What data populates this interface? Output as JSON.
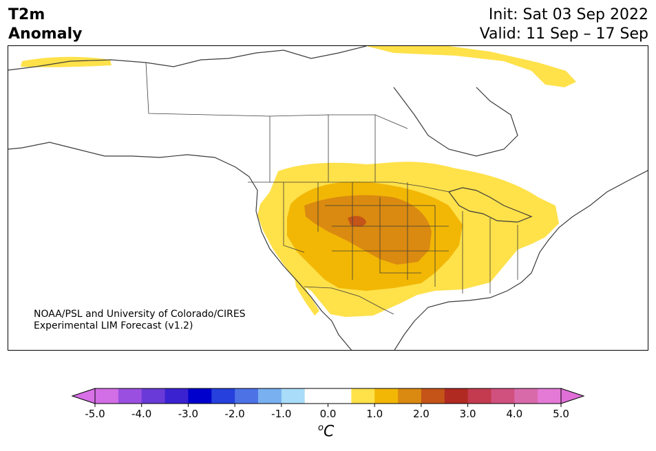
{
  "header": {
    "title_line1": "T2m",
    "title_line2": "Anomaly",
    "init": "Init: Sat 03 Sep 2022",
    "valid": "Valid: 11 Sep – 17 Sep"
  },
  "credit": {
    "line1": "NOAA/PSL and University of Colorado/CIRES",
    "line2": "Experimental LIM Forecast (v1.2)"
  },
  "colorbar": {
    "units_base": "C",
    "units_sup": "o",
    "tick_labels": [
      "-5.0",
      "-4.0",
      "-3.0",
      "-2.0",
      "-1.0",
      "0.0",
      "1.0",
      "2.0",
      "3.0",
      "4.0",
      "5.0"
    ],
    "bin_colors": [
      "#d26ee6",
      "#9b4fe0",
      "#6a3ad8",
      "#3a22d0",
      "#0000cc",
      "#2540dc",
      "#4d72e6",
      "#78b0f0",
      "#a8dcf8",
      "#ffffff",
      "#ffffff",
      "#ffe14a",
      "#f2b705",
      "#da8a10",
      "#c45418",
      "#b02a22",
      "#c43a4e",
      "#d0507e",
      "#d96aaa",
      "#e47ad6"
    ],
    "under_color": "#d870e8",
    "over_color": "#e070d8"
  },
  "map": {
    "anomaly_colors": {
      "weak": "#ffe14a",
      "moderate": "#f2b705",
      "strong": "#da8a10",
      "peak": "#c45418"
    }
  }
}
